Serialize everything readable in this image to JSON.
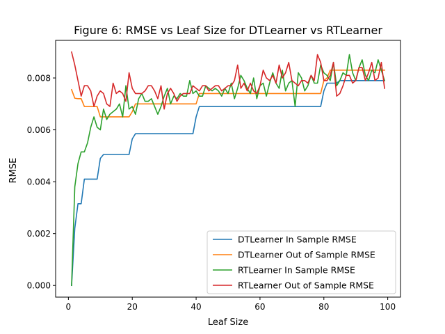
{
  "chart_data": {
    "type": "line",
    "title": "Figure 6: RMSE vs Leaf Size for DTLearner vs RTLearner",
    "xlabel": "Leaf Size",
    "ylabel": "RMSE",
    "xlim": [
      -4,
      104
    ],
    "ylim": [
      -0.00045,
      0.00945
    ],
    "xticks": [
      0,
      20,
      40,
      60,
      80,
      100
    ],
    "xtick_labels": [
      "0",
      "20",
      "40",
      "60",
      "80",
      "100"
    ],
    "yticks": [
      0.0,
      0.002,
      0.004,
      0.006,
      0.008
    ],
    "ytick_labels": [
      "0.000",
      "0.002",
      "0.004",
      "0.006",
      "0.008"
    ],
    "grid": false,
    "legend_position": "lower-right",
    "x": [
      1,
      2,
      3,
      4,
      5,
      6,
      7,
      8,
      9,
      10,
      11,
      12,
      13,
      14,
      15,
      16,
      17,
      18,
      19,
      20,
      21,
      22,
      23,
      24,
      25,
      26,
      27,
      28,
      29,
      30,
      31,
      32,
      33,
      34,
      35,
      36,
      37,
      38,
      39,
      40,
      41,
      42,
      43,
      44,
      45,
      46,
      47,
      48,
      49,
      50,
      51,
      52,
      53,
      54,
      55,
      56,
      57,
      58,
      59,
      60,
      61,
      62,
      63,
      64,
      65,
      66,
      67,
      68,
      69,
      70,
      71,
      72,
      73,
      74,
      75,
      76,
      77,
      78,
      79,
      80,
      81,
      82,
      83,
      84,
      85,
      86,
      87,
      88,
      89,
      90,
      91,
      92,
      93,
      94,
      95,
      96,
      97,
      98,
      99
    ],
    "series": [
      {
        "name": "DTLearner In Sample RMSE",
        "color": "#1f77b4",
        "values": [
          0.0,
          0.0022,
          0.00315,
          0.00315,
          0.0041,
          0.0041,
          0.0041,
          0.0041,
          0.0041,
          0.0049,
          0.00505,
          0.00505,
          0.00505,
          0.00505,
          0.00505,
          0.00505,
          0.00505,
          0.00505,
          0.00505,
          0.00565,
          0.00585,
          0.00585,
          0.00585,
          0.00585,
          0.00585,
          0.00585,
          0.00585,
          0.00585,
          0.00585,
          0.00585,
          0.00585,
          0.00585,
          0.00585,
          0.00585,
          0.00585,
          0.00585,
          0.00585,
          0.00585,
          0.00585,
          0.0065,
          0.0069,
          0.0069,
          0.0069,
          0.0069,
          0.0069,
          0.0069,
          0.0069,
          0.0069,
          0.0069,
          0.0069,
          0.0069,
          0.0069,
          0.0069,
          0.0069,
          0.0069,
          0.0069,
          0.0069,
          0.0069,
          0.0069,
          0.0069,
          0.0069,
          0.0069,
          0.0069,
          0.0069,
          0.0069,
          0.0069,
          0.0069,
          0.0069,
          0.0069,
          0.0069,
          0.0069,
          0.0069,
          0.0069,
          0.0069,
          0.0069,
          0.0069,
          0.0069,
          0.0069,
          0.0069,
          0.0075,
          0.0078,
          0.0078,
          0.0078,
          0.0078,
          0.0079,
          0.0079,
          0.0079,
          0.0079,
          0.0079,
          0.0079,
          0.0079,
          0.0079,
          0.0079,
          0.0079,
          0.0079,
          0.0079,
          0.0079,
          0.0079,
          0.0079
        ]
      },
      {
        "name": "DTLearner Out of Sample RMSE",
        "color": "#ff7f0e",
        "values": [
          0.00755,
          0.00722,
          0.0072,
          0.0072,
          0.0069,
          0.0069,
          0.0069,
          0.0069,
          0.0069,
          0.0065,
          0.0065,
          0.0065,
          0.0065,
          0.0065,
          0.0065,
          0.0065,
          0.0065,
          0.0065,
          0.0065,
          0.0067,
          0.007,
          0.007,
          0.007,
          0.007,
          0.007,
          0.007,
          0.007,
          0.007,
          0.007,
          0.007,
          0.007,
          0.007,
          0.007,
          0.007,
          0.007,
          0.007,
          0.007,
          0.007,
          0.007,
          0.007,
          0.0074,
          0.0074,
          0.0074,
          0.0074,
          0.0074,
          0.0074,
          0.0074,
          0.0074,
          0.0074,
          0.0074,
          0.0074,
          0.0074,
          0.0074,
          0.0074,
          0.0074,
          0.0074,
          0.0074,
          0.0074,
          0.0074,
          0.0074,
          0.0074,
          0.0074,
          0.0074,
          0.0074,
          0.0074,
          0.0074,
          0.0074,
          0.0074,
          0.0074,
          0.0074,
          0.0074,
          0.0074,
          0.0074,
          0.0074,
          0.0074,
          0.0074,
          0.0074,
          0.0074,
          0.0074,
          0.0079,
          0.008,
          0.0083,
          0.0083,
          0.0083,
          0.0083,
          0.0083,
          0.0083,
          0.0083,
          0.0083,
          0.0083,
          0.0083,
          0.0083,
          0.0083,
          0.0083,
          0.0083,
          0.0083,
          0.0083,
          0.0083,
          0.0083
        ]
      },
      {
        "name": "RTLearner In Sample RMSE",
        "color": "#2ca02c",
        "values": [
          0.0,
          0.0038,
          0.0047,
          0.00515,
          0.00515,
          0.0055,
          0.0061,
          0.0065,
          0.0061,
          0.006,
          0.0068,
          0.0064,
          0.0066,
          0.0067,
          0.0068,
          0.007,
          0.0065,
          0.0077,
          0.0068,
          0.0069,
          0.0066,
          0.0072,
          0.0074,
          0.0071,
          0.0071,
          0.0072,
          0.0069,
          0.0066,
          0.0069,
          0.0073,
          0.0076,
          0.007,
          0.0073,
          0.0072,
          0.0074,
          0.0073,
          0.0073,
          0.0079,
          0.0074,
          0.0075,
          0.0073,
          0.0073,
          0.0077,
          0.0076,
          0.0075,
          0.0076,
          0.0075,
          0.0073,
          0.0076,
          0.0074,
          0.0078,
          0.0072,
          0.0076,
          0.0081,
          0.0079,
          0.0076,
          0.0074,
          0.008,
          0.0072,
          0.0077,
          0.0078,
          0.0073,
          0.0078,
          0.0082,
          0.0078,
          0.0076,
          0.0083,
          0.0075,
          0.0078,
          0.0079,
          0.0069,
          0.0082,
          0.008,
          0.0075,
          0.0077,
          0.0081,
          0.0078,
          0.0078,
          0.0085,
          0.0082,
          0.0081,
          0.0079,
          0.0086,
          0.0077,
          0.0079,
          0.0082,
          0.0081,
          0.0089,
          0.0082,
          0.0079,
          0.0084,
          0.0087,
          0.0081,
          0.0079,
          0.0083,
          0.0082,
          0.0087,
          0.0083,
          0.0079
        ]
      },
      {
        "name": "RTLearner Out of Sample RMSE",
        "color": "#d62728",
        "values": [
          0.009,
          0.0085,
          0.0079,
          0.0073,
          0.0077,
          0.0077,
          0.0075,
          0.0069,
          0.0073,
          0.0075,
          0.0074,
          0.007,
          0.0069,
          0.0078,
          0.0074,
          0.0075,
          0.0074,
          0.0071,
          0.0082,
          0.0076,
          0.0074,
          0.0074,
          0.0074,
          0.0075,
          0.0077,
          0.0077,
          0.0075,
          0.0072,
          0.0077,
          0.0068,
          0.0074,
          0.0076,
          0.0074,
          0.0071,
          0.0073,
          0.0074,
          0.0074,
          0.0074,
          0.0077,
          0.0076,
          0.0075,
          0.0077,
          0.0077,
          0.0075,
          0.0076,
          0.0077,
          0.0077,
          0.0075,
          0.0076,
          0.0077,
          0.0077,
          0.0079,
          0.0085,
          0.0076,
          0.0078,
          0.0075,
          0.0078,
          0.0075,
          0.0074,
          0.0077,
          0.0083,
          0.008,
          0.0079,
          0.0081,
          0.0078,
          0.0085,
          0.008,
          0.0082,
          0.0086,
          0.0079,
          0.0078,
          0.0077,
          0.0079,
          0.0079,
          0.0078,
          0.0081,
          0.0079,
          0.0089,
          0.0086,
          0.0079,
          0.0079,
          0.0081,
          0.0086,
          0.0073,
          0.0074,
          0.0077,
          0.0081,
          0.0081,
          0.0078,
          0.0079,
          0.0084,
          0.0084,
          0.0079,
          0.0082,
          0.0086,
          0.0079,
          0.008,
          0.0086,
          0.0076
        ]
      }
    ]
  }
}
